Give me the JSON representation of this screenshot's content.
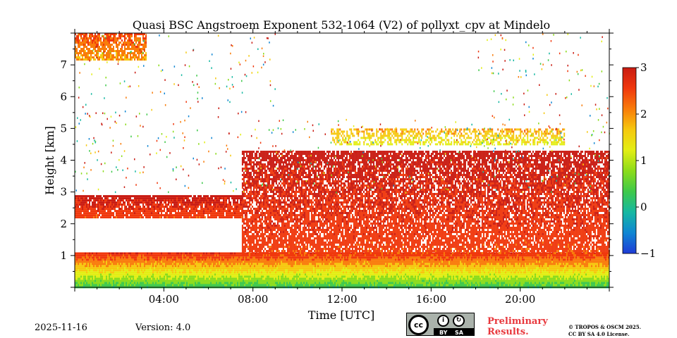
{
  "chart_data": {
    "type": "heatmap",
    "title": "Quasi BSC Angstroem Exponent 532-1064 (V2) of pollyxt_cpv at Mindelo",
    "xlabel": "Time [UTC]",
    "ylabel": "Height [km]",
    "xlim": [
      0,
      24
    ],
    "ylim": [
      0,
      8
    ],
    "x_ticks": [
      4,
      8,
      12,
      16,
      20
    ],
    "x_tick_labels": [
      "04:00",
      "08:00",
      "12:00",
      "16:00",
      "20:00"
    ],
    "y_ticks": [
      1,
      2,
      3,
      4,
      5,
      6,
      7
    ],
    "y_tick_labels": [
      "1",
      "2",
      "3",
      "4",
      "5",
      "6",
      "7"
    ],
    "colorbar": {
      "min": -1,
      "max": 3,
      "ticks": [
        -1,
        0,
        1,
        2,
        3
      ],
      "tick_labels": [
        "−1",
        "0",
        "1",
        "2",
        "3"
      ],
      "colormap": [
        "#1f3bd6",
        "#0f86d3",
        "#16b8a2",
        "#3ec94a",
        "#8bdc1a",
        "#e3ee14",
        "#f6c80e",
        "#f97c0a",
        "#f0380d",
        "#c91b12"
      ]
    },
    "layers": [
      {
        "name": "near-surface layer",
        "x": [
          0,
          24
        ],
        "y": [
          0.0,
          1.1
        ],
        "value_range": [
          0.3,
          2.5
        ]
      },
      {
        "name": "dust layer",
        "x": [
          7.5,
          24
        ],
        "y": [
          1.0,
          4.3
        ],
        "value_range": [
          2.0,
          2.8
        ]
      },
      {
        "name": "elevated layer",
        "x": [
          0,
          7.5
        ],
        "y": [
          2.2,
          2.9
        ],
        "value_range": [
          2.0,
          2.8
        ]
      },
      {
        "name": "upper thin layer",
        "x": [
          11.5,
          22
        ],
        "y": [
          4.5,
          5.0
        ],
        "value_range": [
          0.8,
          1.8
        ]
      },
      {
        "name": "top-left patch",
        "x": [
          0,
          3.2
        ],
        "y": [
          7.2,
          8.0
        ],
        "value_range": [
          1.5,
          2.3
        ]
      }
    ]
  },
  "footer": {
    "date": "2025-11-16",
    "version": "Version: 4.0",
    "license_badge": {
      "cc": "cc",
      "by": "BY",
      "sa": "SA"
    },
    "preliminary_line1": "Preliminary",
    "preliminary_line2": "Results.",
    "copyright_line1": "© TROPOS & OSCM 2025.",
    "copyright_line2": "CC BY SA 4.0 License."
  }
}
